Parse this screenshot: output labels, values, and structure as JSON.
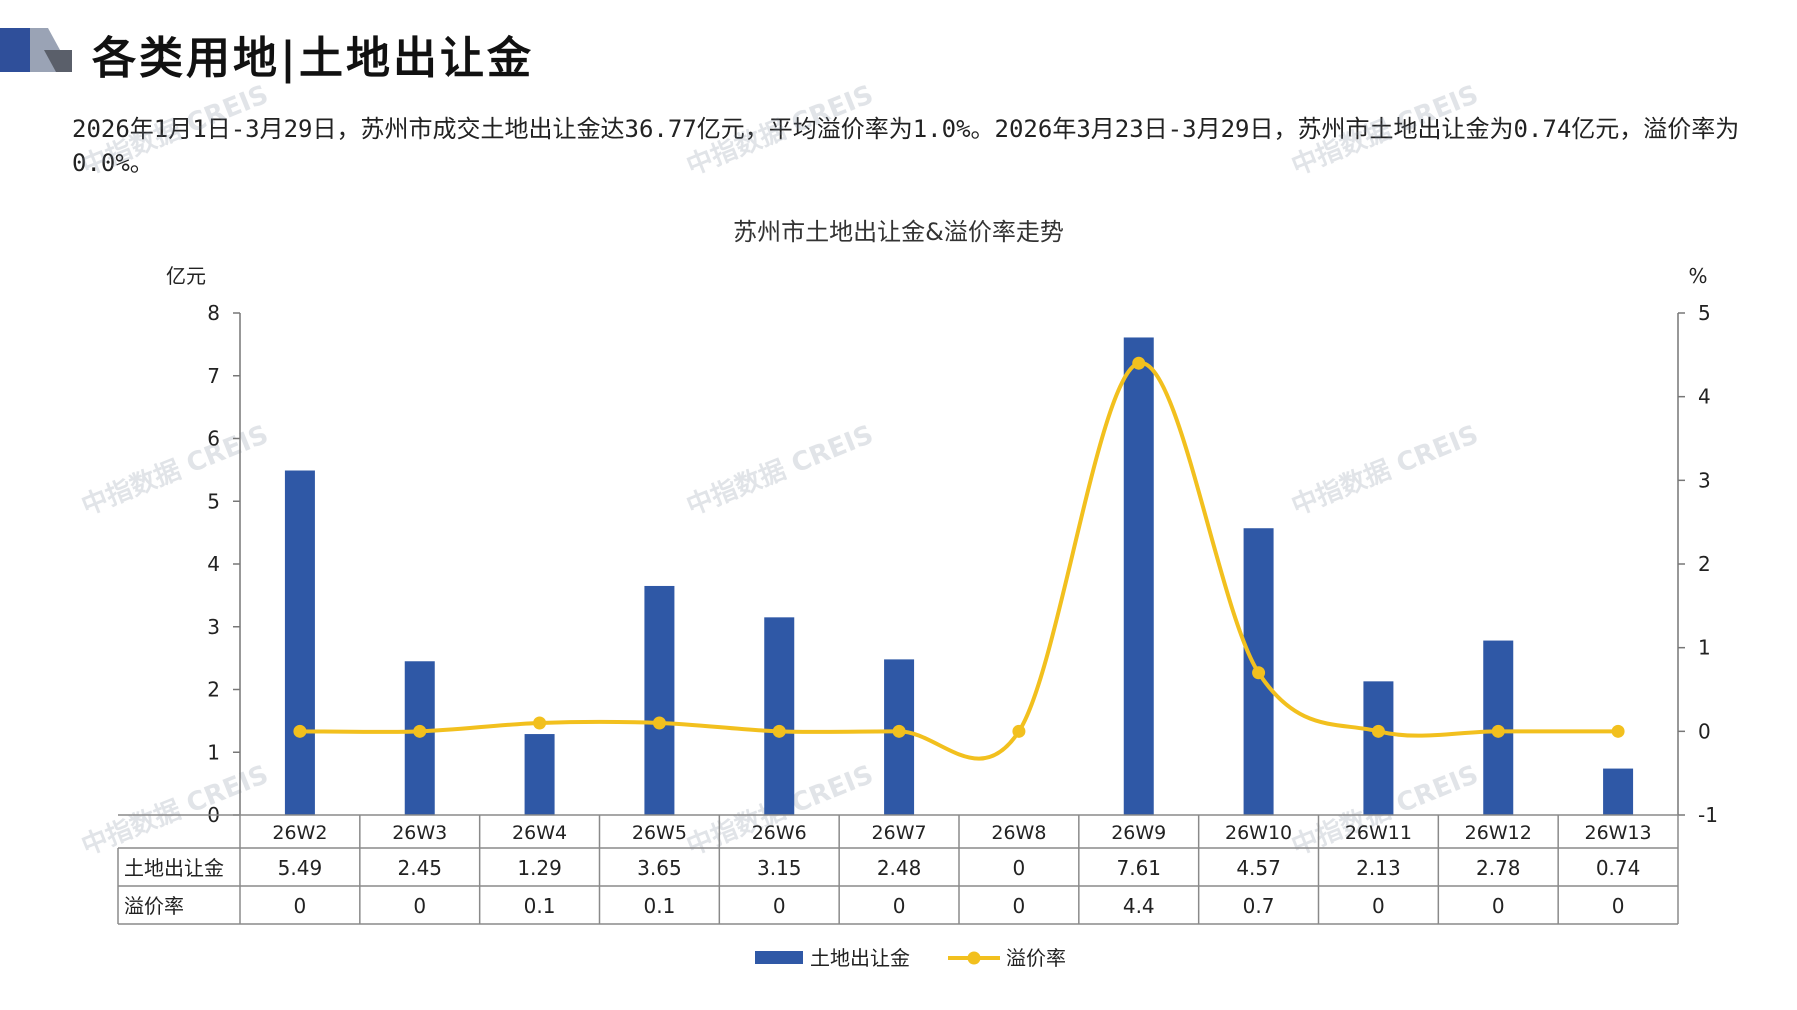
{
  "header": {
    "title": "各类用地|土地出让金"
  },
  "summary": "2026年1月1日-3月29日，苏州市成交土地出让金达36.77亿元，平均溢价率为1.0%。2026年3月23日-3月29日，苏州市土地出让金为0.74亿元，溢价率为0.0%。",
  "watermark": "中指数据 CREIS",
  "chart_data": {
    "type": "bar",
    "title": "苏州市土地出让金&溢价率走势",
    "categories": [
      "26W2",
      "26W3",
      "26W4",
      "26W5",
      "26W6",
      "26W7",
      "26W8",
      "26W9",
      "26W10",
      "26W11",
      "26W12",
      "26W13"
    ],
    "series": [
      {
        "name": "土地出让金",
        "type": "bar",
        "axis": "left",
        "values": [
          5.49,
          2.45,
          1.29,
          3.65,
          3.15,
          2.48,
          0,
          7.61,
          4.57,
          2.13,
          2.78,
          0.74
        ],
        "labels": [
          "5.49",
          "2.45",
          "1.29",
          "3.65",
          "3.15",
          "2.48",
          "0",
          "7.61",
          "4.57",
          "2.13",
          "2.78",
          "0.74"
        ]
      },
      {
        "name": "溢价率",
        "type": "line",
        "axis": "right",
        "values": [
          0,
          0,
          0.1,
          0.1,
          0,
          0,
          0,
          4.4,
          0.7,
          0,
          0,
          0
        ],
        "labels": [
          "0",
          "0",
          "0.1",
          "0.1",
          "0",
          "0",
          "0",
          "4.4",
          "0.7",
          "0",
          "0",
          "0"
        ]
      }
    ],
    "y_left": {
      "unit": "亿元",
      "min": 0,
      "max": 8,
      "ticks": [
        "0",
        "1",
        "2",
        "3",
        "4",
        "5",
        "6",
        "7",
        "8"
      ]
    },
    "y_right": {
      "unit": "%",
      "min": -1,
      "max": 5,
      "ticks": [
        "-1",
        "0",
        "1",
        "2",
        "3",
        "4",
        "5"
      ]
    },
    "grid": false,
    "legend": "bottom",
    "data_table": true
  },
  "colors": {
    "bar": "#2f58a6",
    "line": "#f2c01e",
    "logo_dark": "#2f4f9a",
    "logo_light": "#c9ccd3"
  }
}
